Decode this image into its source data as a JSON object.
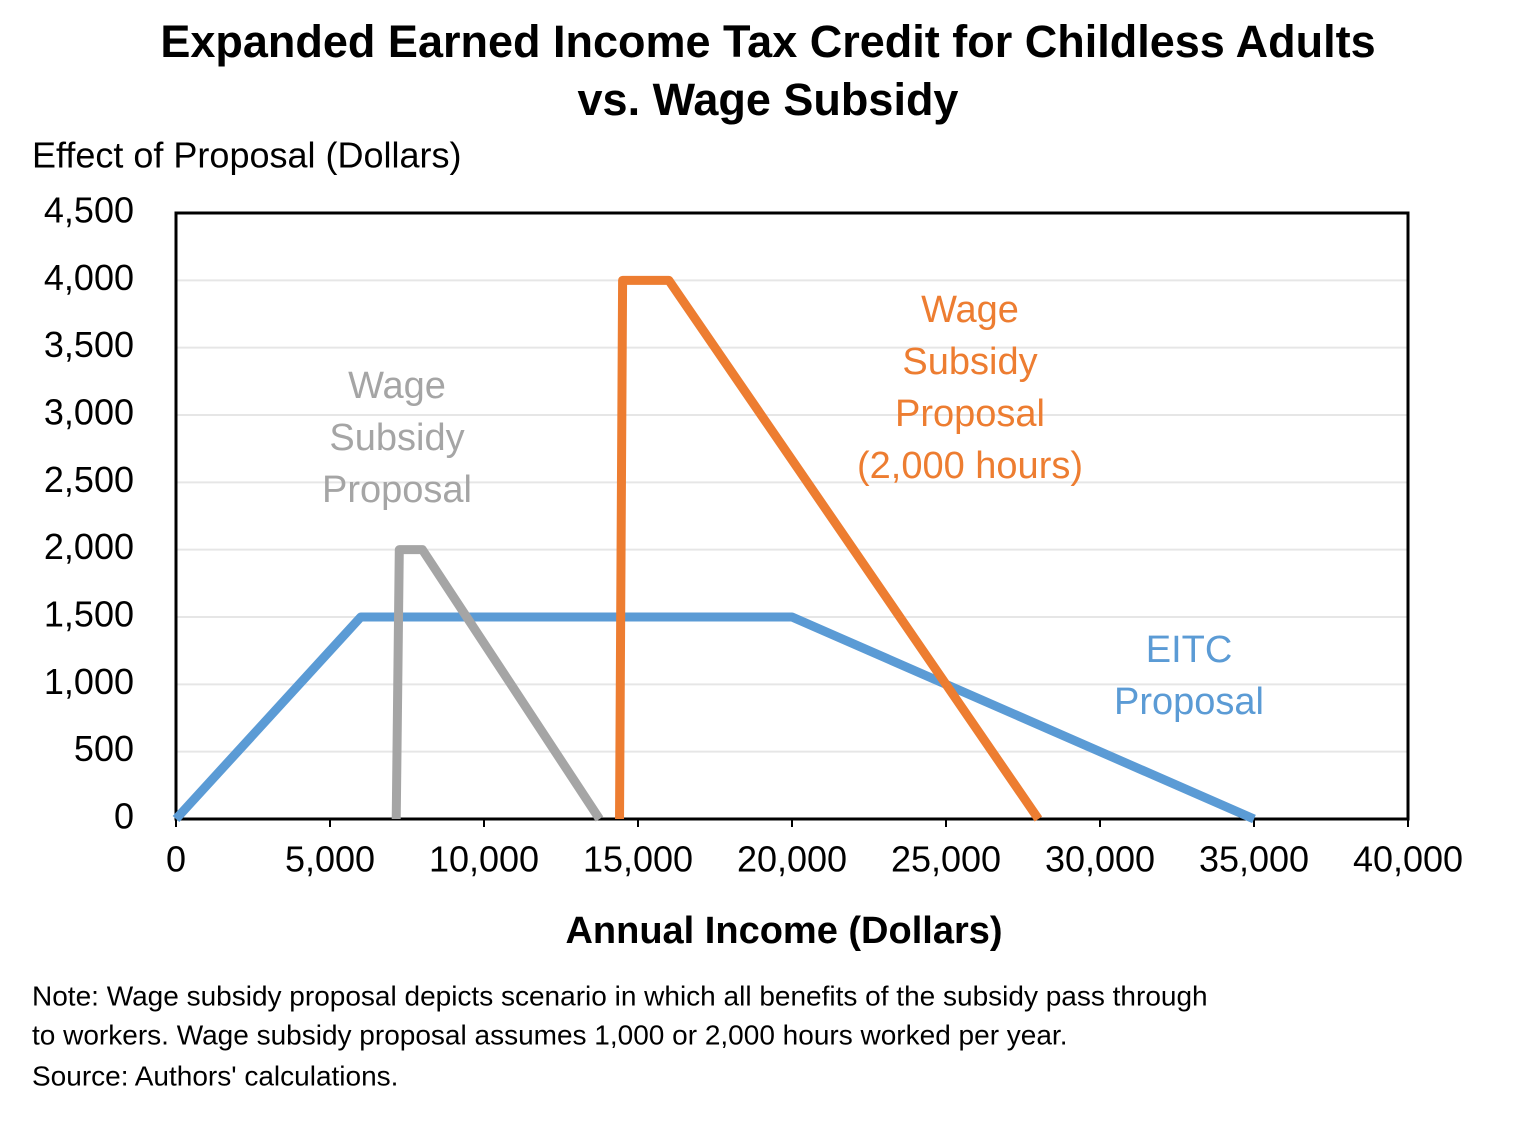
{
  "chart_data": {
    "type": "line",
    "title": [
      "Expanded Earned Income Tax Credit for Childless Adults",
      "vs. Wage Subsidy"
    ],
    "y_label": "Effect of Proposal (Dollars)",
    "x_label": "Annual Income (Dollars)",
    "notes": [
      "Note: Wage subsidy proposal depicts scenario in which all benefits of the subsidy pass through",
      "to workers. Wage subsidy proposal assumes 1,000 or 2,000 hours worked per year.",
      "Source: Authors' calculations."
    ],
    "xlim": [
      0,
      40000
    ],
    "xticks": [
      0,
      {
        "value": 5000,
        "label": "5,000"
      },
      {
        "value": 10000,
        "label": "10,000"
      },
      {
        "value": 15000,
        "label": "15,000"
      },
      {
        "value": 20000,
        "label": "20,000"
      },
      {
        "value": 25000,
        "label": "25,000"
      },
      {
        "value": 30000,
        "label": "30,000"
      },
      {
        "value": 35000,
        "label": "35,000"
      },
      {
        "value": 40000,
        "label": "40,000"
      }
    ],
    "ylim": [
      0,
      4500
    ],
    "yticks": [
      0,
      500,
      {
        "value": 1000,
        "label": "1,000"
      },
      {
        "value": 1500,
        "label": "1,500"
      },
      {
        "value": 2000,
        "label": "2,000"
      },
      {
        "value": 2500,
        "label": "2,500"
      },
      {
        "value": 3000,
        "label": "3,000"
      },
      {
        "value": 3500,
        "label": "3,500"
      },
      {
        "value": 4000,
        "label": "4,000"
      },
      {
        "value": 4500,
        "label": "4,500"
      }
    ],
    "grid": true,
    "series": [
      {
        "color": "#5b9bd5",
        "x": [
          0,
          6000,
          20000,
          35000
        ],
        "values": [
          0,
          1500,
          1500,
          0
        ]
      },
      {
        "color": "#a5a5a5",
        "x": [
          7150,
          7250,
          8000,
          13750
        ],
        "values": [
          0,
          2000,
          2000,
          0
        ]
      },
      {
        "color": "#ed7d31",
        "x": [
          14400,
          14500,
          16000,
          28000
        ],
        "values": [
          0,
          4000,
          4000,
          0
        ]
      }
    ],
    "annotations": [
      {
        "lines": [
          "EITC",
          "Proposal"
        ],
        "color": "#5b9bd5"
      },
      {
        "lines": [
          "Wage",
          "Subsidy",
          "Proposal"
        ],
        "color": "#a5a5a5"
      },
      {
        "lines": [
          "Wage",
          "Subsidy",
          "Proposal",
          "(2,000 hours)"
        ],
        "color": "#ed7d31"
      }
    ]
  }
}
